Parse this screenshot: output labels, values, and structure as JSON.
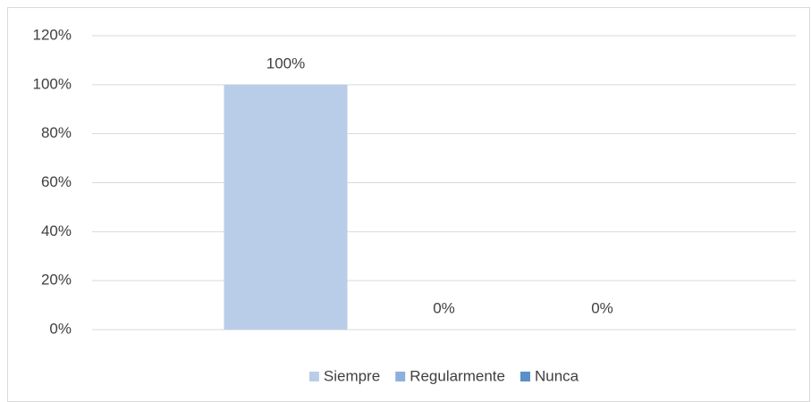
{
  "chart_data": {
    "type": "bar",
    "categories": [
      null
    ],
    "series": [
      {
        "name": "Siempre",
        "color": "#b9cde8",
        "values": [
          100
        ],
        "value_labels": [
          "100%"
        ]
      },
      {
        "name": "Regularmente",
        "color": "#8eb0dc",
        "values": [
          0
        ],
        "value_labels": [
          "0%"
        ]
      },
      {
        "name": "Nunca",
        "color": "#5b8fc9",
        "values": [
          0
        ],
        "value_labels": [
          "0%"
        ]
      }
    ],
    "ylim": [
      0,
      120
    ],
    "yticks": [
      {
        "value": 0,
        "label": "0%"
      },
      {
        "value": 20,
        "label": "20%"
      },
      {
        "value": 40,
        "label": "40%"
      },
      {
        "value": 60,
        "label": "60%"
      },
      {
        "value": 80,
        "label": "80%"
      },
      {
        "value": 100,
        "label": "100%"
      },
      {
        "value": 120,
        "label": "120%"
      }
    ],
    "grid": true,
    "legend": "bottom"
  }
}
